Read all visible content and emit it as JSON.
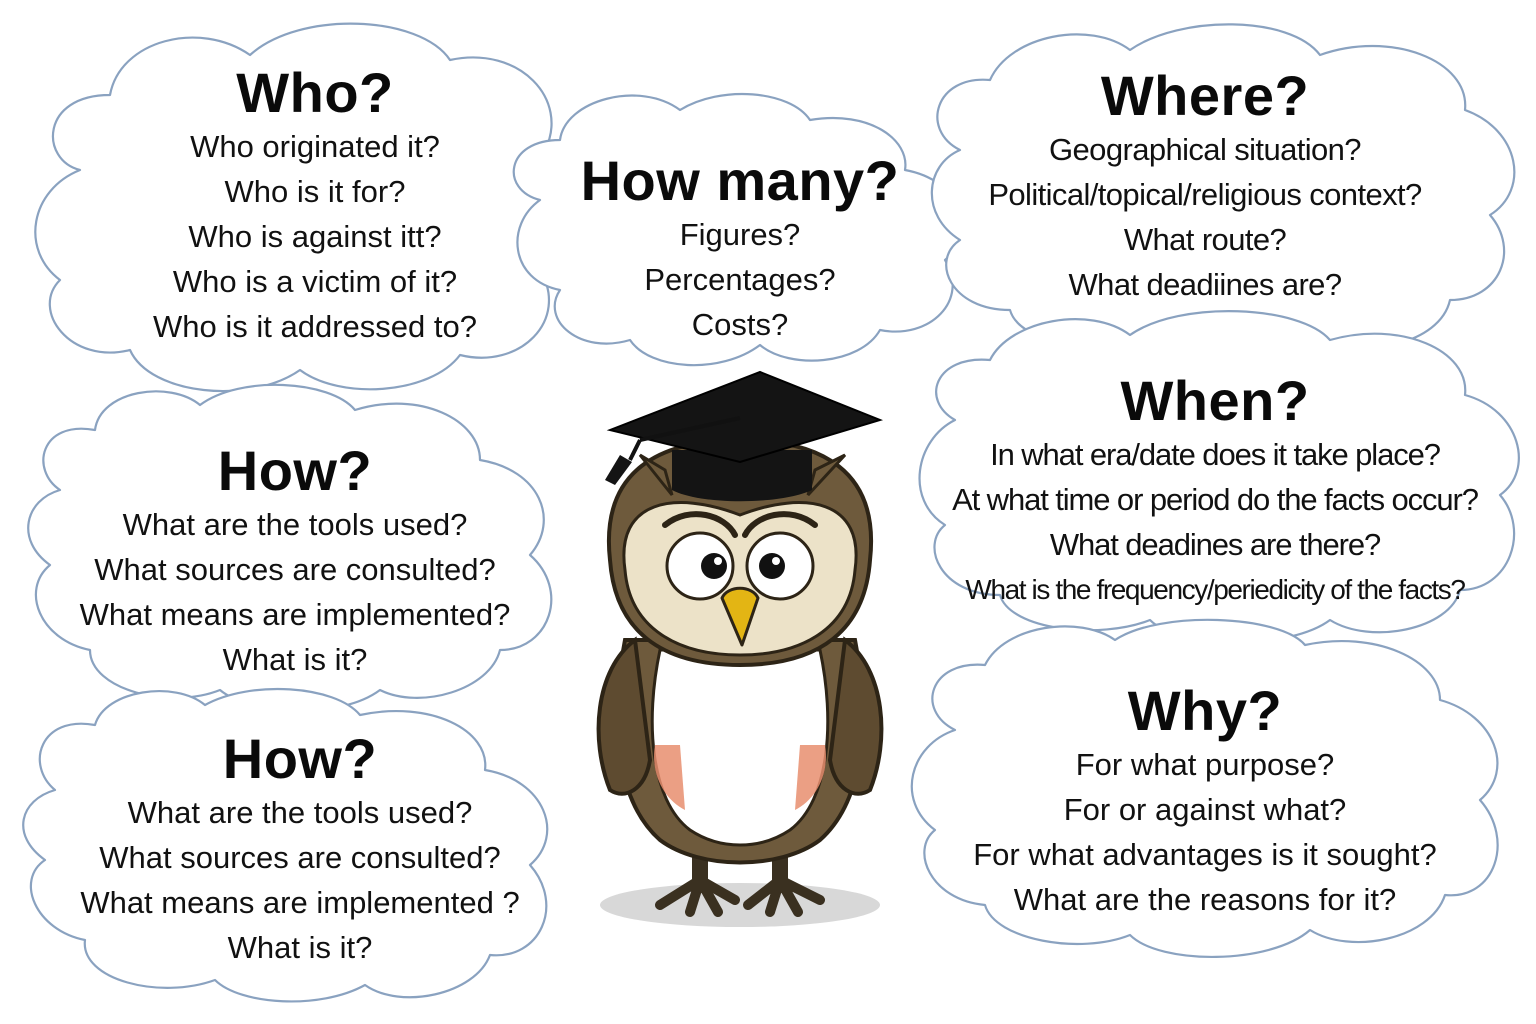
{
  "clouds": {
    "who": {
      "title": "Who?",
      "questions": [
        "Who originated it?",
        "Who is it for?",
        "Who is against itt?",
        "Who is a victim of it?",
        "Who is it addressed to?"
      ]
    },
    "how_many": {
      "title": "How many?",
      "questions": [
        "Figures?",
        "Percentages?",
        "Costs?"
      ]
    },
    "where": {
      "title": "Where?",
      "questions": [
        "Geographical situation?",
        "Political/topical/religious context?",
        "What route?",
        "What deadiines are?"
      ]
    },
    "how1": {
      "title": "How?",
      "questions": [
        "What are the tools used?",
        "What sources are consulted?",
        "What means are implemented?",
        "What is it?"
      ]
    },
    "when": {
      "title": "When?",
      "questions": [
        "In what era/date does it take place?",
        "At what time or period do the facts occur?",
        "What deadines are there?",
        "What is the frequency/periedicity of the facts?"
      ]
    },
    "how2": {
      "title": "How?",
      "questions": [
        "What are the tools used?",
        "What sources are consulted?",
        "What means are implemented ?",
        "What is it?"
      ]
    },
    "why": {
      "title": "Why?",
      "questions": [
        "For what purpose?",
        "For or against what?",
        "For what advantages is it sought?",
        "What are the reasons for it?"
      ]
    }
  },
  "colors": {
    "cloud_outline": "#8aa2c0",
    "owl_brown": "#6e5a3c",
    "owl_face": "#ece2c8",
    "beak": "#e3b514",
    "belly": "#ffffff",
    "belly_blush": "#e88e6e",
    "cap": "#141414"
  },
  "illustration": {
    "character": "owl-with-graduation-cap-icon"
  }
}
